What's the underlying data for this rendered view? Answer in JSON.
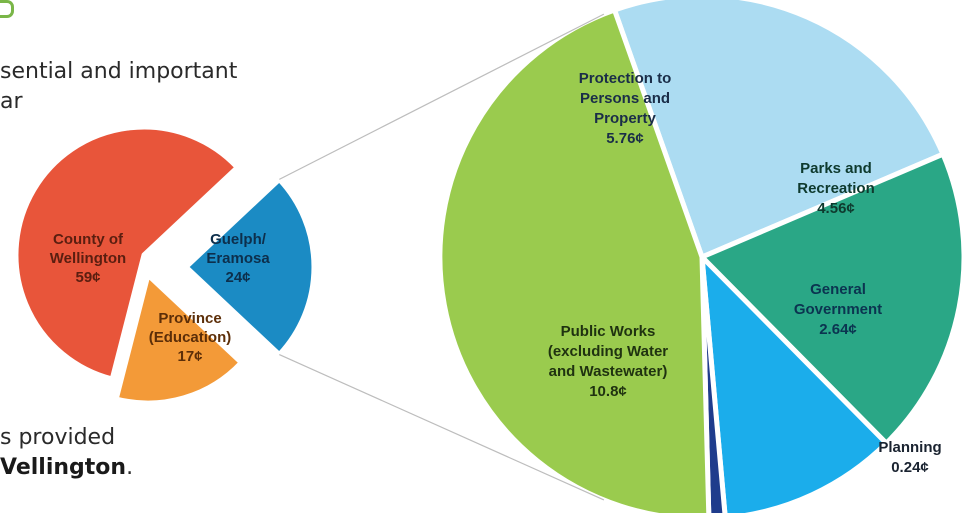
{
  "text": {
    "line1": "sential and important",
    "line2": "ar",
    "line3": "s provided",
    "line4_prefix": "",
    "line4_bold": "Vellington",
    "line4_suffix": "."
  },
  "icons": {
    "corner": "recycle-arrow-icon"
  },
  "colors": {
    "county": "#e8553a",
    "province": "#f39a38",
    "guelph": "#1b8bc4",
    "protection": "#acdcf2",
    "parks": "#2aa786",
    "general": "#1badeb",
    "planning": "#1f3c8c",
    "public_works": "#9acb4e",
    "connector": "#bdbdbd",
    "divider": "#ffffff"
  },
  "chart_data": [
    {
      "type": "pie",
      "slices": [
        {
          "label": "County of Wellington",
          "value": 59,
          "display": "59¢",
          "lines": [
            "County of",
            "Wellington",
            "59¢"
          ]
        },
        {
          "label": "Province (Education)",
          "value": 17,
          "display": "17¢",
          "lines": [
            "Province",
            "(Education)",
            "17¢"
          ]
        },
        {
          "label": "Guelph/ Eramosa",
          "value": 24,
          "display": "24¢",
          "lines": [
            "Guelph/",
            "Eramosa",
            "24¢"
          ],
          "exploded": true
        }
      ]
    },
    {
      "type": "pie",
      "slices": [
        {
          "label": "Protection to Persons and Property",
          "value": 5.76,
          "display": "5.76¢",
          "lines": [
            "Protection to",
            "Persons and",
            "Property",
            "5.76¢"
          ]
        },
        {
          "label": "Parks and Recreation",
          "value": 4.56,
          "display": "4.56¢",
          "lines": [
            "Parks and",
            "Recreation",
            "4.56¢"
          ]
        },
        {
          "label": "General Government",
          "value": 2.64,
          "display": "2.64¢",
          "lines": [
            "General",
            "Government",
            "2.64¢"
          ]
        },
        {
          "label": "Planning",
          "value": 0.24,
          "display": "0.24¢",
          "lines": [
            "Planning",
            "0.24¢"
          ]
        },
        {
          "label": "Public Works (excluding Water and Wastewater)",
          "value": 10.8,
          "display": "10.8¢",
          "lines": [
            "Public Works",
            "(excluding Water",
            "and Wastewater)",
            "10.8¢"
          ]
        }
      ]
    }
  ]
}
